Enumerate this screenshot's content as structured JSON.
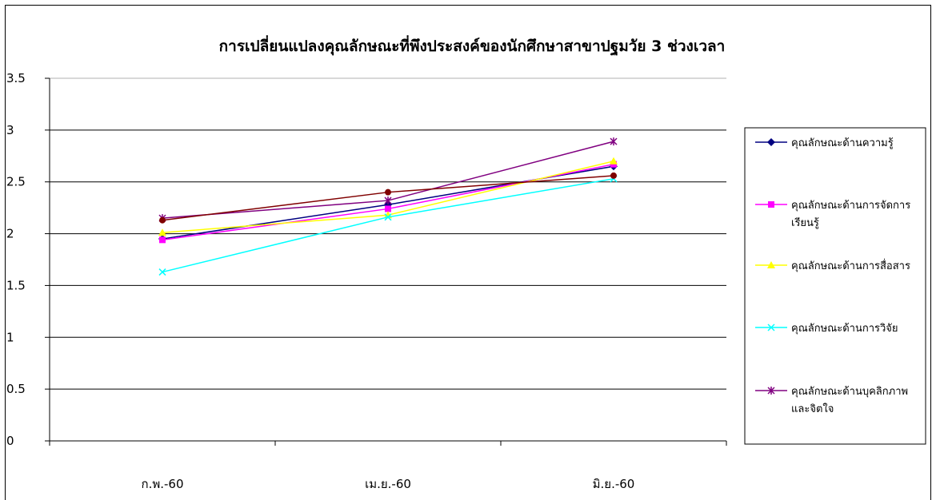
{
  "chart_data": {
    "type": "line",
    "title": "การเปลี่ยนแปลงคุณลักษณะที่พึงประสงค์ของนักศึกษาสาขาปฐมวัย 3 ช่วงเวลา",
    "xlabel": "",
    "ylabel": "",
    "categories": [
      "ก.พ.-60",
      "เม.ย.-60",
      "มิ.ย.-60"
    ],
    "ylim": [
      0,
      3.5
    ],
    "yticks": [
      "0",
      "0.5",
      "1",
      "1.5",
      "2",
      "2.5",
      "3",
      "3.5"
    ],
    "grid": true,
    "legend_position": "right",
    "series": [
      {
        "name": "คุณลักษณะด้านความรู้",
        "values": [
          1.95,
          2.28,
          2.65
        ],
        "color": "#000080",
        "marker": "diamond"
      },
      {
        "name": "คุณลักษณะด้านการจัดการเรียนรู้",
        "legend_lines": [
          "คุณลักษณะด้านการจัดการ",
          "เรียนรู้"
        ],
        "values": [
          1.94,
          2.24,
          2.67
        ],
        "color": "#ff00ff",
        "marker": "square"
      },
      {
        "name": "คุณลักษณะด้านการสื่อสาร",
        "values": [
          2.01,
          2.18,
          2.7
        ],
        "color": "#ffff00",
        "marker": "triangle"
      },
      {
        "name": "คุณลักษณะด้านการวิจัย",
        "values": [
          1.63,
          2.16,
          2.53
        ],
        "color": "#00ffff",
        "marker": "x"
      },
      {
        "name": "คุณลักษณะด้านบุคลิกภาพและจิตใจ",
        "legend_lines": [
          "คุณลักษณะด้านบุคลิกภาพ",
          "และจิตใจ"
        ],
        "values": [
          2.15,
          2.32,
          2.89
        ],
        "color": "#800080",
        "marker": "star"
      },
      {
        "name": "",
        "values": [
          2.13,
          2.4,
          2.56
        ],
        "color": "#800000",
        "marker": "circle"
      }
    ]
  }
}
